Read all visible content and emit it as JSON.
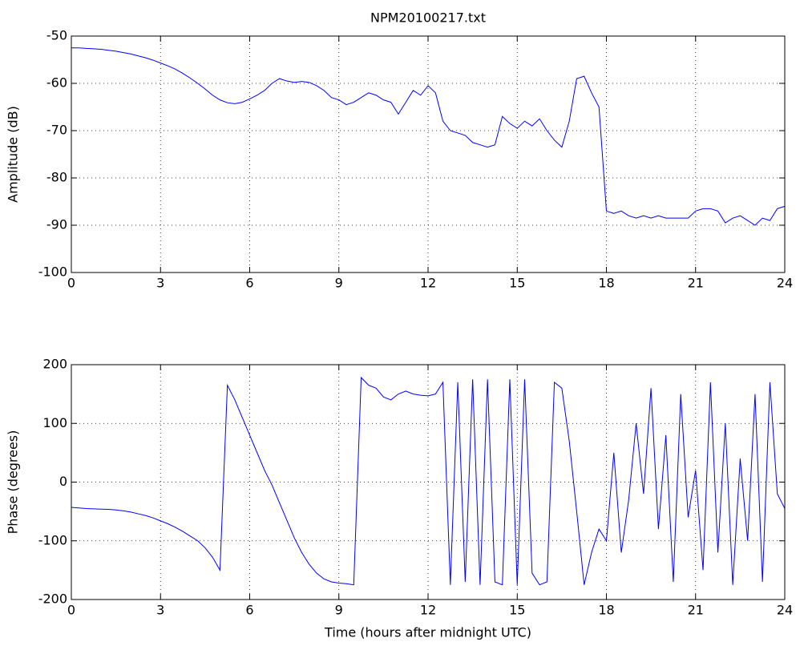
{
  "chart_data": [
    {
      "type": "line",
      "title": "NPM20100217.txt",
      "y_label": "Amplitude (dB)",
      "x": [
        0,
        0.25,
        0.5,
        0.75,
        1,
        1.25,
        1.5,
        1.75,
        2,
        2.25,
        2.5,
        2.75,
        3,
        3.25,
        3.5,
        3.75,
        4,
        4.25,
        4.5,
        4.75,
        5,
        5.25,
        5.5,
        5.75,
        6,
        6.25,
        6.5,
        6.75,
        7,
        7.25,
        7.5,
        7.75,
        8,
        8.25,
        8.5,
        8.75,
        9,
        9.25,
        9.5,
        9.75,
        10,
        10.25,
        10.5,
        10.75,
        11,
        11.25,
        11.5,
        11.75,
        12,
        12.25,
        12.5,
        12.75,
        13,
        13.25,
        13.5,
        13.75,
        14,
        14.25,
        14.5,
        14.75,
        15,
        15.25,
        15.5,
        15.75,
        16,
        16.25,
        16.5,
        16.75,
        17,
        17.25,
        17.5,
        17.75,
        18,
        18.25,
        18.5,
        18.75,
        19,
        19.25,
        19.5,
        19.75,
        20,
        20.25,
        20.5,
        20.75,
        21,
        21.25,
        21.5,
        21.75,
        22,
        22.25,
        22.5,
        22.75,
        23,
        23.25,
        23.5,
        23.75,
        24
      ],
      "series": [
        {
          "color": "#0000ff",
          "values": [
            -52.5,
            -52.5,
            -52.6,
            -52.7,
            -52.8,
            -53,
            -53.2,
            -53.5,
            -53.8,
            -54.2,
            -54.6,
            -55.1,
            -55.7,
            -56.3,
            -57,
            -57.9,
            -58.9,
            -60,
            -61.2,
            -62.5,
            -63.5,
            -64.1,
            -64.3,
            -64,
            -63.3,
            -62.5,
            -61.5,
            -60,
            -59,
            -59.5,
            -59.8,
            -59.6,
            -59.8,
            -60.5,
            -61.5,
            -63,
            -63.5,
            -64.5,
            -64,
            -63,
            -62,
            -62.5,
            -63.5,
            -64,
            -66.5,
            -64,
            -61.5,
            -62.5,
            -60.5,
            -62,
            -68,
            -70,
            -70.5,
            -71,
            -72.5,
            -73,
            -73.5,
            -73,
            -67,
            -68.5,
            -69.5,
            -68,
            -69,
            -67.5,
            -70,
            -72,
            -73.5,
            -68,
            -59,
            -58.5,
            -62,
            -65,
            -87,
            -87.5,
            -87,
            -88,
            -88.5,
            -88,
            -88.5,
            -88,
            -88.5,
            -88.5,
            -88.5,
            -88.5,
            -87,
            -86.5,
            -86.5,
            -87,
            -89.5,
            -88.5,
            -88,
            -89,
            -90,
            -88.5,
            -89,
            -86.5,
            -86
          ]
        }
      ],
      "xlim": [
        0,
        24
      ],
      "xticks": [
        0,
        3,
        6,
        9,
        12,
        15,
        18,
        21,
        24
      ],
      "ylim": [
        -100,
        -50
      ],
      "yticks": [
        -100,
        -90,
        -80,
        -70,
        -60,
        -50
      ],
      "grid": true
    },
    {
      "type": "line",
      "x_label": "Time (hours after midnight UTC)",
      "y_label": "Phase (degrees)",
      "x": [
        0,
        0.25,
        0.5,
        0.75,
        1,
        1.25,
        1.5,
        1.75,
        2,
        2.25,
        2.5,
        2.75,
        3,
        3.25,
        3.5,
        3.75,
        4,
        4.25,
        4.5,
        4.75,
        5,
        5.25,
        5.5,
        5.75,
        6,
        6.25,
        6.5,
        6.75,
        7,
        7.25,
        7.5,
        7.75,
        8,
        8.25,
        8.5,
        8.75,
        9,
        9.25,
        9.5,
        9.75,
        10,
        10.25,
        10.5,
        10.75,
        11,
        11.25,
        11.5,
        11.75,
        12,
        12.25,
        12.5,
        12.75,
        13,
        13.25,
        13.5,
        13.75,
        14,
        14.25,
        14.5,
        14.75,
        15,
        15.25,
        15.5,
        15.75,
        16,
        16.25,
        16.5,
        16.75,
        17,
        17.25,
        17.5,
        17.75,
        18,
        18.25,
        18.5,
        18.75,
        19,
        19.25,
        19.5,
        19.75,
        20,
        20.25,
        20.5,
        20.75,
        21,
        21.25,
        21.5,
        21.75,
        22,
        22.25,
        22.5,
        22.75,
        23,
        23.25,
        23.5,
        23.75,
        24
      ],
      "series": [
        {
          "color": "#0000ff",
          "values": [
            -43,
            -44,
            -45,
            -45.5,
            -46,
            -46.5,
            -47.5,
            -49,
            -51,
            -54,
            -57,
            -61,
            -66,
            -71,
            -77,
            -84,
            -92,
            -100,
            -112,
            -128,
            -150,
            165,
            140,
            110,
            80,
            50,
            20,
            -5,
            -35,
            -65,
            -95,
            -120,
            -140,
            -155,
            -165,
            -170,
            -172,
            -173,
            -175,
            178,
            165,
            160,
            145,
            140,
            150,
            155,
            150,
            148,
            147,
            150,
            170,
            -175,
            170,
            -170,
            175,
            -175,
            175,
            -170,
            -175,
            175,
            -175,
            175,
            -155,
            -175,
            -170,
            170,
            160,
            70,
            -50,
            -175,
            -120,
            -80,
            -100,
            50,
            -120,
            -30,
            100,
            -20,
            160,
            -80,
            80,
            -170,
            150,
            -60,
            20,
            -150,
            170,
            -120,
            100,
            -175,
            40,
            -100,
            150,
            -170,
            170,
            -20,
            -45
          ]
        }
      ],
      "xlim": [
        0,
        24
      ],
      "xticks": [
        0,
        3,
        6,
        9,
        12,
        15,
        18,
        21,
        24
      ],
      "ylim": [
        -200,
        200
      ],
      "yticks": [
        -200,
        -100,
        0,
        100,
        200
      ],
      "grid": true
    }
  ]
}
